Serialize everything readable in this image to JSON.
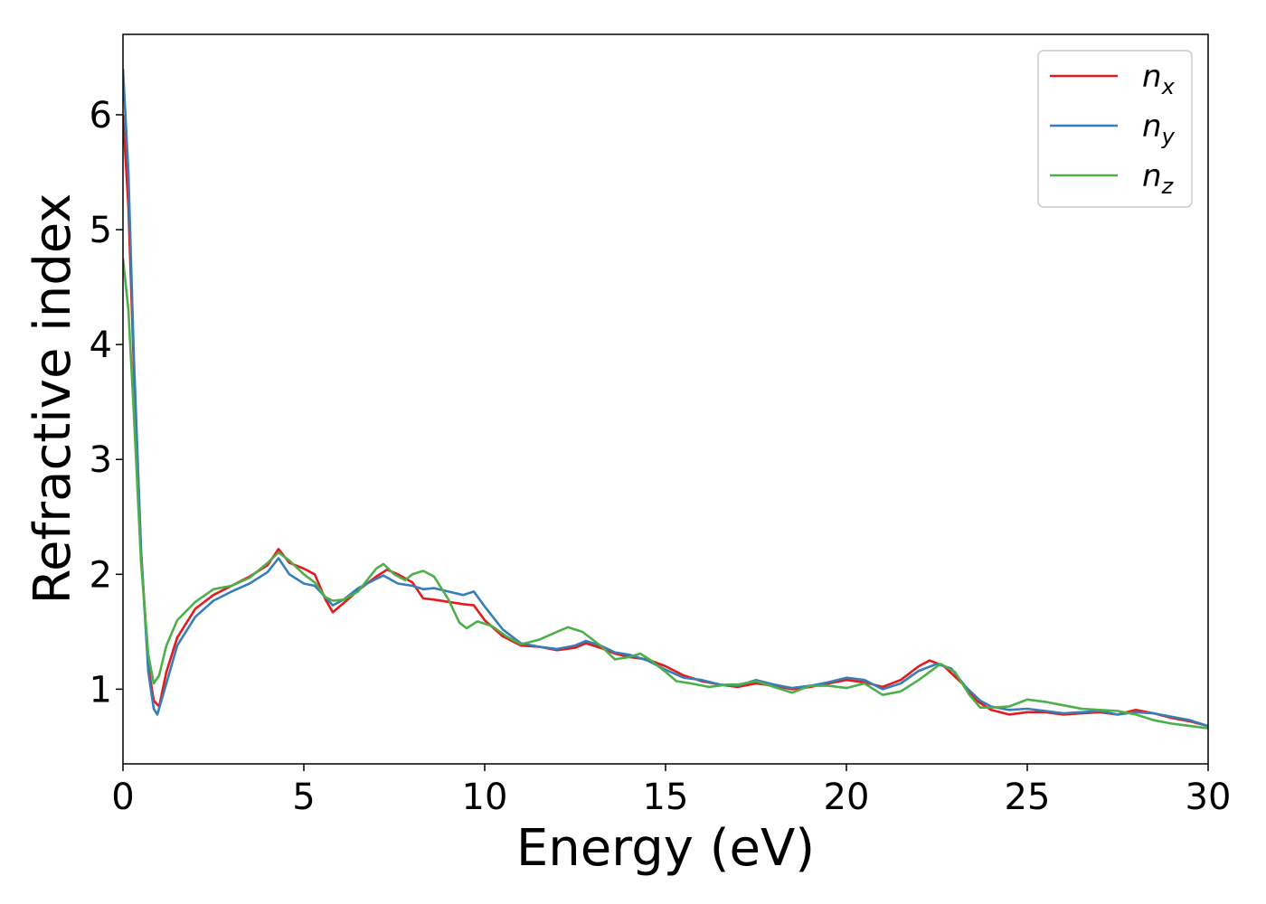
{
  "chart_data": {
    "type": "line",
    "title": "",
    "xlabel": "Energy (eV)",
    "ylabel": "Refractive index",
    "xlim": [
      0,
      30
    ],
    "ylim": [
      0.35,
      6.7
    ],
    "xticks": [
      0,
      5,
      10,
      15,
      20,
      25,
      30
    ],
    "yticks": [
      1,
      2,
      3,
      4,
      5,
      6
    ],
    "grid": false,
    "legend_position": "top-right",
    "series": [
      {
        "name": "n_x",
        "label_base": "n",
        "label_sub": "x",
        "color": "#e41a1c",
        "points": [
          [
            0,
            6.0
          ],
          [
            0.15,
            5.2
          ],
          [
            0.3,
            3.8
          ],
          [
            0.5,
            2.2
          ],
          [
            0.7,
            1.2
          ],
          [
            0.85,
            0.9
          ],
          [
            1.0,
            0.85
          ],
          [
            1.2,
            1.15
          ],
          [
            1.5,
            1.45
          ],
          [
            2.0,
            1.7
          ],
          [
            2.5,
            1.82
          ],
          [
            3.0,
            1.9
          ],
          [
            3.5,
            1.98
          ],
          [
            4.0,
            2.08
          ],
          [
            4.3,
            2.22
          ],
          [
            4.6,
            2.1
          ],
          [
            5.0,
            2.05
          ],
          [
            5.3,
            2.0
          ],
          [
            5.6,
            1.78
          ],
          [
            5.8,
            1.67
          ],
          [
            6.1,
            1.75
          ],
          [
            6.5,
            1.86
          ],
          [
            7.0,
            1.98
          ],
          [
            7.3,
            2.04
          ],
          [
            7.6,
            2.0
          ],
          [
            8.0,
            1.93
          ],
          [
            8.3,
            1.79
          ],
          [
            8.6,
            1.78
          ],
          [
            9.0,
            1.76
          ],
          [
            9.4,
            1.74
          ],
          [
            9.7,
            1.73
          ],
          [
            10.0,
            1.6
          ],
          [
            10.5,
            1.46
          ],
          [
            11.0,
            1.38
          ],
          [
            11.5,
            1.37
          ],
          [
            12.0,
            1.34
          ],
          [
            12.5,
            1.36
          ],
          [
            12.8,
            1.4
          ],
          [
            13.2,
            1.36
          ],
          [
            13.6,
            1.31
          ],
          [
            14.0,
            1.28
          ],
          [
            14.5,
            1.26
          ],
          [
            15.0,
            1.2
          ],
          [
            15.5,
            1.12
          ],
          [
            16.0,
            1.07
          ],
          [
            16.5,
            1.04
          ],
          [
            17.0,
            1.02
          ],
          [
            17.5,
            1.05
          ],
          [
            18.0,
            1.03
          ],
          [
            18.5,
            1.0
          ],
          [
            19.0,
            1.02
          ],
          [
            19.5,
            1.05
          ],
          [
            20.0,
            1.08
          ],
          [
            20.5,
            1.06
          ],
          [
            21.0,
            1.02
          ],
          [
            21.5,
            1.08
          ],
          [
            22.0,
            1.2
          ],
          [
            22.3,
            1.25
          ],
          [
            22.7,
            1.2
          ],
          [
            23.2,
            1.05
          ],
          [
            23.6,
            0.9
          ],
          [
            24.0,
            0.82
          ],
          [
            24.5,
            0.78
          ],
          [
            25.0,
            0.8
          ],
          [
            25.5,
            0.8
          ],
          [
            26.0,
            0.78
          ],
          [
            26.5,
            0.79
          ],
          [
            27.0,
            0.8
          ],
          [
            27.5,
            0.78
          ],
          [
            28.0,
            0.82
          ],
          [
            28.5,
            0.79
          ],
          [
            29.0,
            0.75
          ],
          [
            29.5,
            0.72
          ],
          [
            30.0,
            0.68
          ]
        ]
      },
      {
        "name": "n_y",
        "label_base": "n",
        "label_sub": "y",
        "color": "#377eb8",
        "points": [
          [
            0,
            6.4
          ],
          [
            0.15,
            5.5
          ],
          [
            0.3,
            3.9
          ],
          [
            0.5,
            2.2
          ],
          [
            0.7,
            1.15
          ],
          [
            0.85,
            0.83
          ],
          [
            0.95,
            0.78
          ],
          [
            1.2,
            1.05
          ],
          [
            1.5,
            1.38
          ],
          [
            2.0,
            1.63
          ],
          [
            2.5,
            1.77
          ],
          [
            3.0,
            1.85
          ],
          [
            3.5,
            1.92
          ],
          [
            4.0,
            2.02
          ],
          [
            4.3,
            2.14
          ],
          [
            4.6,
            2.0
          ],
          [
            5.0,
            1.92
          ],
          [
            5.3,
            1.9
          ],
          [
            5.6,
            1.8
          ],
          [
            5.8,
            1.73
          ],
          [
            6.1,
            1.78
          ],
          [
            6.5,
            1.88
          ],
          [
            7.0,
            1.96
          ],
          [
            7.2,
            1.99
          ],
          [
            7.6,
            1.92
          ],
          [
            8.0,
            1.9
          ],
          [
            8.3,
            1.87
          ],
          [
            8.6,
            1.88
          ],
          [
            9.0,
            1.85
          ],
          [
            9.4,
            1.82
          ],
          [
            9.7,
            1.85
          ],
          [
            10.0,
            1.72
          ],
          [
            10.5,
            1.52
          ],
          [
            11.0,
            1.4
          ],
          [
            11.5,
            1.37
          ],
          [
            12.0,
            1.35
          ],
          [
            12.5,
            1.38
          ],
          [
            12.8,
            1.42
          ],
          [
            13.2,
            1.38
          ],
          [
            13.6,
            1.32
          ],
          [
            14.0,
            1.3
          ],
          [
            14.5,
            1.25
          ],
          [
            15.0,
            1.17
          ],
          [
            15.5,
            1.1
          ],
          [
            16.0,
            1.08
          ],
          [
            16.5,
            1.04
          ],
          [
            17.0,
            1.03
          ],
          [
            17.5,
            1.08
          ],
          [
            18.0,
            1.04
          ],
          [
            18.5,
            1.01
          ],
          [
            19.0,
            1.03
          ],
          [
            19.5,
            1.06
          ],
          [
            20.0,
            1.1
          ],
          [
            20.5,
            1.08
          ],
          [
            21.0,
            1.0
          ],
          [
            21.5,
            1.05
          ],
          [
            22.0,
            1.16
          ],
          [
            22.5,
            1.22
          ],
          [
            22.9,
            1.18
          ],
          [
            23.3,
            1.02
          ],
          [
            23.7,
            0.9
          ],
          [
            24.0,
            0.85
          ],
          [
            24.5,
            0.82
          ],
          [
            25.0,
            0.83
          ],
          [
            25.5,
            0.81
          ],
          [
            26.0,
            0.79
          ],
          [
            26.5,
            0.8
          ],
          [
            27.0,
            0.81
          ],
          [
            27.5,
            0.78
          ],
          [
            28.0,
            0.8
          ],
          [
            28.5,
            0.79
          ],
          [
            29.0,
            0.76
          ],
          [
            29.5,
            0.73
          ],
          [
            30.0,
            0.68
          ]
        ]
      },
      {
        "name": "n_z",
        "label_base": "n",
        "label_sub": "z",
        "color": "#4daf4a",
        "points": [
          [
            0,
            4.75
          ],
          [
            0.15,
            4.3
          ],
          [
            0.3,
            3.4
          ],
          [
            0.5,
            2.1
          ],
          [
            0.7,
            1.3
          ],
          [
            0.85,
            1.05
          ],
          [
            1.0,
            1.12
          ],
          [
            1.2,
            1.38
          ],
          [
            1.5,
            1.6
          ],
          [
            2.0,
            1.76
          ],
          [
            2.5,
            1.87
          ],
          [
            3.0,
            1.9
          ],
          [
            3.5,
            1.97
          ],
          [
            4.0,
            2.1
          ],
          [
            4.3,
            2.19
          ],
          [
            4.6,
            2.12
          ],
          [
            5.0,
            2.0
          ],
          [
            5.3,
            1.93
          ],
          [
            5.6,
            1.8
          ],
          [
            5.8,
            1.77
          ],
          [
            6.1,
            1.78
          ],
          [
            6.5,
            1.85
          ],
          [
            7.0,
            2.05
          ],
          [
            7.2,
            2.09
          ],
          [
            7.5,
            2.0
          ],
          [
            7.8,
            1.95
          ],
          [
            8.0,
            2.0
          ],
          [
            8.3,
            2.03
          ],
          [
            8.6,
            1.98
          ],
          [
            9.0,
            1.78
          ],
          [
            9.3,
            1.58
          ],
          [
            9.5,
            1.53
          ],
          [
            9.8,
            1.59
          ],
          [
            10.2,
            1.55
          ],
          [
            10.6,
            1.46
          ],
          [
            11.0,
            1.39
          ],
          [
            11.5,
            1.43
          ],
          [
            12.0,
            1.5
          ],
          [
            12.3,
            1.54
          ],
          [
            12.7,
            1.5
          ],
          [
            13.2,
            1.38
          ],
          [
            13.6,
            1.26
          ],
          [
            14.0,
            1.28
          ],
          [
            14.3,
            1.31
          ],
          [
            14.6,
            1.25
          ],
          [
            15.0,
            1.15
          ],
          [
            15.3,
            1.07
          ],
          [
            15.7,
            1.05
          ],
          [
            16.2,
            1.02
          ],
          [
            16.7,
            1.04
          ],
          [
            17.0,
            1.04
          ],
          [
            17.5,
            1.07
          ],
          [
            18.0,
            1.02
          ],
          [
            18.5,
            0.97
          ],
          [
            19.0,
            1.03
          ],
          [
            19.5,
            1.03
          ],
          [
            20.0,
            1.01
          ],
          [
            20.5,
            1.05
          ],
          [
            21.0,
            0.95
          ],
          [
            21.5,
            0.98
          ],
          [
            22.0,
            1.08
          ],
          [
            22.6,
            1.22
          ],
          [
            23.0,
            1.15
          ],
          [
            23.4,
            0.95
          ],
          [
            23.7,
            0.84
          ],
          [
            24.0,
            0.84
          ],
          [
            24.5,
            0.85
          ],
          [
            25.0,
            0.91
          ],
          [
            25.5,
            0.89
          ],
          [
            26.0,
            0.86
          ],
          [
            26.5,
            0.83
          ],
          [
            27.0,
            0.82
          ],
          [
            27.5,
            0.81
          ],
          [
            28.0,
            0.78
          ],
          [
            28.5,
            0.73
          ],
          [
            29.0,
            0.7
          ],
          [
            29.5,
            0.68
          ],
          [
            30.0,
            0.66
          ]
        ]
      }
    ]
  }
}
